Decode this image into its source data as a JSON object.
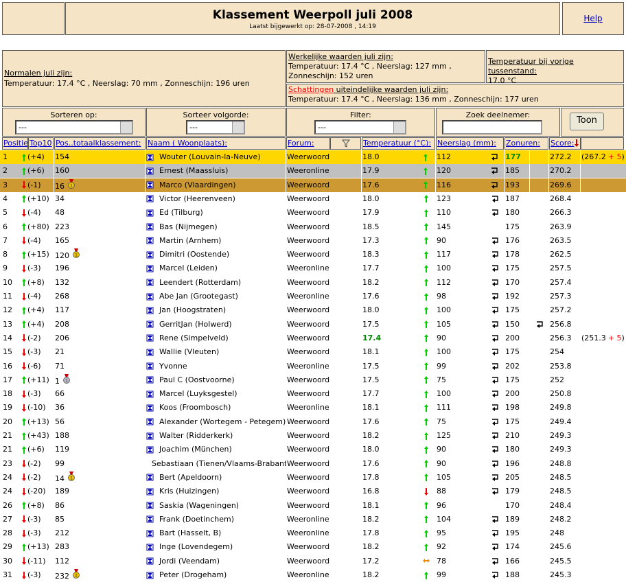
{
  "header": {
    "title": "Klassement Weerpoll juli 2008",
    "updated": "Laatst bijgewerkt op: 28-07-2008 , 14:19",
    "help": "Help"
  },
  "info": {
    "normals_title": "Normalen juli zijn:",
    "normals": "Temperatuur: 17.4 °C , Neerslag: 70 mm , Zonneschijn: 196 uren",
    "actual_title": "Werkelijke waarden juli zijn:",
    "actual": "Temperatuur: 17.4 °C , Neerslag: 127 mm , Zonneschijn: 152 uren",
    "previous_title": "Temperatuur bij vorige tussenstand:",
    "previous": "17.0 °C",
    "estimate_link": "Schattingen",
    "estimate_title": " uiteindelijke waarden juli zijn:",
    "estimate": "Temperatuur: 17.4 °C , Neerslag: 136 mm , Zonneschijn: 177 uren"
  },
  "controls": {
    "sort_label": "Sorteren op:",
    "sort_value": "---",
    "order_label": "Sorteer volgorde:",
    "order_value": "---",
    "filter_label": "Filter:",
    "filter_value": "---",
    "search_label": "Zoek deelnemer:",
    "button": "Toon"
  },
  "table": {
    "columns": {
      "position": "Positie:",
      "top10": "Top10",
      "total": "Pos..totaalklassement:",
      "name": "Naam ( Woonplaats):",
      "forum": "Forum:",
      "temp": "Temperatuur (°C):",
      "rain": "Neerslag (mm):",
      "sun": "Zonuren:",
      "score": "Score:"
    },
    "rows": [
      {
        "pos": "1",
        "trend": "up",
        "change": "(+4)",
        "total": "154",
        "name": "Wouter (Louvain-la-Neuve)",
        "forum": "Weerwoord",
        "temp": "18.0",
        "temp_trend": "up",
        "rain": "112",
        "rain_icon": true,
        "sun": "177",
        "best": "sun",
        "score": "272.2",
        "note": {
          "open": "(267.2",
          "bonus": "+ 5",
          "close": ")"
        }
      },
      {
        "pos": "2",
        "trend": "up",
        "change": "(+6)",
        "total": "160",
        "name": "Ernest (Maassluis)",
        "forum": "Weeronline",
        "temp": "17.9",
        "temp_trend": "up",
        "rain": "120",
        "rain_icon": true,
        "sun": "185",
        "score": "270.2"
      },
      {
        "pos": "3",
        "trend": "down",
        "change": "(-1)",
        "total": "16",
        "medal": "gold",
        "name": "Marco (Vlaardingen)",
        "forum": "Weerwoord",
        "temp": "17.6",
        "temp_trend": "up",
        "rain": "116",
        "rain_icon": true,
        "sun": "193",
        "score": "269.6"
      },
      {
        "pos": "4",
        "trend": "up",
        "change": "(+10)",
        "total": "34",
        "name": "Victor (Heerenveen)",
        "forum": "Weerwoord",
        "temp": "18.0",
        "temp_trend": "up",
        "rain": "123",
        "rain_icon": true,
        "sun": "187",
        "score": "268.4"
      },
      {
        "pos": "5",
        "trend": "down",
        "change": "(-4)",
        "total": "48",
        "name": "Ed (Tilburg)",
        "forum": "Weerwoord",
        "temp": "17.9",
        "temp_trend": "up",
        "rain": "110",
        "rain_icon": true,
        "sun": "180",
        "score": "266.3"
      },
      {
        "pos": "6",
        "trend": "up",
        "change": "(+80)",
        "total": "223",
        "name": "Bas (Nijmegen)",
        "forum": "Weerwoord",
        "temp": "18.5",
        "temp_trend": "up",
        "rain": "145",
        "sun": "175",
        "score": "263.9"
      },
      {
        "pos": "7",
        "trend": "down",
        "change": "(-4)",
        "total": "165",
        "name": "Martin (Arnhem)",
        "forum": "Weerwoord",
        "temp": "17.3",
        "temp_trend": "up",
        "rain": "90",
        "rain_icon": true,
        "sun": "176",
        "score": "263.5"
      },
      {
        "pos": "8",
        "trend": "up",
        "change": "(+15)",
        "total": "120",
        "medal": "gold",
        "name": "Dimitri (Oostende)",
        "forum": "Weerwoord",
        "temp": "18.3",
        "temp_trend": "up",
        "rain": "117",
        "rain_icon": true,
        "sun": "178",
        "score": "262.5"
      },
      {
        "pos": "9",
        "trend": "down",
        "change": "(-3)",
        "total": "196",
        "name": "Marcel (Leiden)",
        "forum": "Weeronline",
        "temp": "17.7",
        "temp_trend": "up",
        "rain": "100",
        "rain_icon": true,
        "sun": "175",
        "score": "257.5"
      },
      {
        "pos": "10",
        "trend": "up",
        "change": "(+8)",
        "total": "132",
        "name": "Leendert (Rotterdam)",
        "forum": "Weerwoord",
        "temp": "18.2",
        "temp_trend": "up",
        "rain": "112",
        "rain_icon": true,
        "sun": "170",
        "score": "257.4"
      },
      {
        "pos": "11",
        "trend": "down",
        "change": "(-4)",
        "total": "268",
        "name": "Abe Jan (Grootegast)",
        "forum": "Weeronline",
        "temp": "17.6",
        "temp_trend": "up",
        "rain": "98",
        "rain_icon": true,
        "sun": "192",
        "score": "257.3"
      },
      {
        "pos": "12",
        "trend": "up",
        "change": "(+4)",
        "total": "117",
        "name": "Jan (Hoogstraten)",
        "forum": "Weerwoord",
        "temp": "18.0",
        "temp_trend": "up",
        "rain": "100",
        "rain_icon": true,
        "sun": "175",
        "score": "257.2"
      },
      {
        "pos": "13",
        "trend": "up",
        "change": "(+4)",
        "total": "208",
        "name": "GerritJan (Holwerd)",
        "forum": "Weerwoord",
        "temp": "17.5",
        "temp_trend": "up",
        "rain": "105",
        "rain_icon": true,
        "sun": "150",
        "sun_icon": true,
        "score": "256.8"
      },
      {
        "pos": "14",
        "trend": "down",
        "change": "(-2)",
        "total": "206",
        "name": "Rene (Simpelveld)",
        "forum": "Weerwoord",
        "temp": "17.4",
        "best": "temp",
        "temp_trend": "up",
        "rain": "90",
        "rain_icon": true,
        "sun": "200",
        "score": "256.3",
        "note": {
          "open": "(251.3",
          "bonus": "+ 5",
          "close": ")"
        }
      },
      {
        "pos": "15",
        "trend": "down",
        "change": "(-3)",
        "total": "21",
        "name": "Wallie (Vleuten)",
        "forum": "Weerwoord",
        "temp": "18.1",
        "temp_trend": "up",
        "rain": "100",
        "rain_icon": true,
        "sun": "175",
        "score": "254"
      },
      {
        "pos": "16",
        "trend": "down",
        "change": "(-6)",
        "total": "71",
        "name": "Yvonne",
        "forum": "Weeronline",
        "temp": "17.5",
        "temp_trend": "up",
        "rain": "99",
        "rain_icon": true,
        "sun": "202",
        "score": "253.8"
      },
      {
        "pos": "17",
        "trend": "up",
        "change": "(+11)",
        "total": "1",
        "medal": "silver",
        "name": "Paul C (Oostvoorne)",
        "forum": "Weerwoord",
        "temp": "17.5",
        "temp_trend": "up",
        "rain": "75",
        "rain_icon": true,
        "sun": "175",
        "score": "252"
      },
      {
        "pos": "18",
        "trend": "down",
        "change": "(-3)",
        "total": "66",
        "name": "Marcel (Luyksgestel)",
        "forum": "Weerwoord",
        "temp": "17.7",
        "temp_trend": "up",
        "rain": "100",
        "rain_icon": true,
        "sun": "200",
        "score": "250.8"
      },
      {
        "pos": "19",
        "trend": "down",
        "change": "(-10)",
        "total": "36",
        "name": "Koos (Froombosch)",
        "forum": "Weeronline",
        "temp": "18.1",
        "temp_trend": "up",
        "rain": "111",
        "rain_icon": true,
        "sun": "198",
        "score": "249.8"
      },
      {
        "pos": "20",
        "trend": "up",
        "change": "(+13)",
        "total": "56",
        "name": "Alexander (Wortegem - Petegem)",
        "forum": "Weerwoord",
        "temp": "17.6",
        "temp_trend": "up",
        "rain": "75",
        "rain_icon": true,
        "sun": "175",
        "score": "249.4"
      },
      {
        "pos": "21",
        "trend": "up",
        "change": "(+43)",
        "total": "188",
        "name": "Walter (Ridderkerk)",
        "forum": "Weerwoord",
        "temp": "18.2",
        "temp_trend": "up",
        "rain": "125",
        "rain_icon": true,
        "sun": "210",
        "score": "249.3"
      },
      {
        "pos": "21",
        "trend": "up",
        "change": "(+6)",
        "total": "119",
        "name": "Joachim (München)",
        "forum": "Weerwoord",
        "temp": "18.0",
        "temp_trend": "up",
        "rain": "90",
        "rain_icon": true,
        "sun": "180",
        "score": "249.3"
      },
      {
        "pos": "23",
        "trend": "down",
        "change": "(-2)",
        "total": "99",
        "name": "Sebastiaan (Tienen/Vlaams-Brabant)",
        "forum": "Weerwoord",
        "temp": "17.6",
        "temp_trend": "up",
        "rain": "90",
        "rain_icon": true,
        "sun": "196",
        "score": "248.8"
      },
      {
        "pos": "24",
        "trend": "down",
        "change": "(-2)",
        "total": "14",
        "medal": "gold",
        "name": "Bert (Apeldoorn)",
        "forum": "Weerwoord",
        "temp": "17.8",
        "temp_trend": "up",
        "rain": "105",
        "rain_icon": true,
        "sun": "205",
        "score": "248.5"
      },
      {
        "pos": "24",
        "trend": "down",
        "change": "(-20)",
        "total": "189",
        "name": "Kris (Huizingen)",
        "forum": "Weerwoord",
        "temp": "16.8",
        "temp_trend": "down",
        "rain": "88",
        "rain_icon": true,
        "sun": "179",
        "score": "248.5"
      },
      {
        "pos": "26",
        "trend": "up",
        "change": "(+8)",
        "total": "86",
        "name": "Saskia (Wageningen)",
        "forum": "Weerwoord",
        "temp": "18.1",
        "temp_trend": "up",
        "rain": "96",
        "sun": "170",
        "score": "248.4"
      },
      {
        "pos": "27",
        "trend": "down",
        "change": "(-3)",
        "total": "85",
        "name": "Frank (Doetinchem)",
        "forum": "Weeronline",
        "temp": "18.2",
        "temp_trend": "up",
        "rain": "104",
        "rain_icon": true,
        "sun": "189",
        "score": "248.2"
      },
      {
        "pos": "28",
        "trend": "down",
        "change": "(-3)",
        "total": "212",
        "name": "Bart (Hasselt, B)",
        "forum": "Weeronline",
        "temp": "17.8",
        "temp_trend": "up",
        "rain": "95",
        "rain_icon": true,
        "sun": "195",
        "score": "248"
      },
      {
        "pos": "29",
        "trend": "up",
        "change": "(+13)",
        "total": "283",
        "name": "Inge (Lovendegem)",
        "forum": "Weerwoord",
        "temp": "18.2",
        "temp_trend": "up",
        "rain": "92",
        "rain_icon": true,
        "sun": "174",
        "score": "245.6"
      },
      {
        "pos": "30",
        "trend": "down",
        "change": "(-11)",
        "total": "112",
        "name": "Jordi (Veendam)",
        "forum": "Weerwoord",
        "temp": "17.2",
        "temp_trend": "equal",
        "rain": "78",
        "rain_icon": true,
        "sun": "166",
        "score": "245.5"
      },
      {
        "pos": "31",
        "trend": "down",
        "change": "(-3)",
        "total": "232",
        "medal": "gold",
        "name": "Peter (Drogeham)",
        "forum": "Weeronline",
        "temp": "18.2",
        "temp_trend": "up",
        "rain": "99",
        "rain_icon": true,
        "sun": "188",
        "score": "245.3"
      }
    ]
  }
}
